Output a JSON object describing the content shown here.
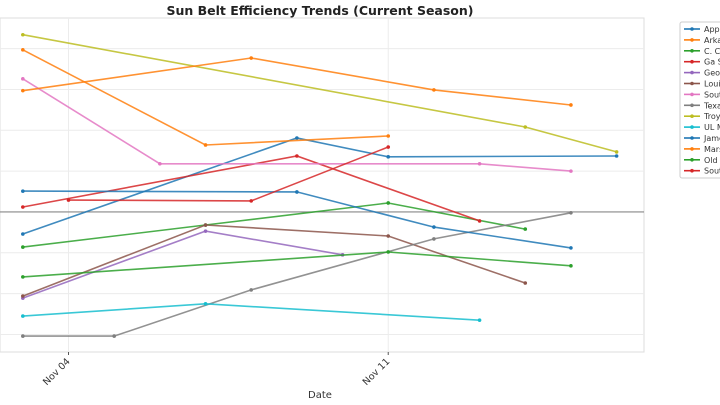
{
  "chart_data": {
    "type": "line",
    "title": "Sun Belt Efficiency Trends (Current Season)",
    "xlabel": "Date",
    "ylabel": "",
    "x_ticks": [
      "Nov 04",
      "Nov 11"
    ],
    "xlim": [
      "Nov 02.5",
      "Nov 16.6"
    ],
    "ylim": [
      -3.43,
      4.75
    ],
    "grid": true,
    "zero_line": true,
    "legend_placement": "outside-right",
    "series": [
      {
        "name": "Appa",
        "color": "#1f77b4",
        "points": [
          [
            "Nov 03",
            -0.54
          ],
          [
            "Nov 09",
            1.81
          ],
          [
            "Nov 11",
            1.35
          ],
          [
            "Nov 16",
            1.37
          ]
        ]
      },
      {
        "name": "Arka",
        "color": "#ff7f0e",
        "points": [
          [
            "Nov 03",
            3.97
          ],
          [
            "Nov 07",
            1.64
          ],
          [
            "Nov 11",
            1.86
          ]
        ]
      },
      {
        "name": "C. C",
        "color": "#2ca02c",
        "points": [
          [
            "Nov 03",
            -0.86
          ],
          [
            "Nov 07",
            -0.32
          ],
          [
            "Nov 11",
            0.22
          ],
          [
            "Nov 14",
            -0.42
          ]
        ]
      },
      {
        "name": "Ga S",
        "color": "#d62728",
        "points": [
          [
            "Nov 03",
            0.12
          ],
          [
            "Nov 09",
            1.37
          ],
          [
            "Nov 13",
            -0.22
          ]
        ]
      },
      {
        "name": "Geo",
        "color": "#9467bd",
        "points": [
          [
            "Nov 03",
            -2.11
          ],
          [
            "Nov 07",
            -0.47
          ],
          [
            "Nov 10",
            -1.05
          ]
        ]
      },
      {
        "name": "Loui",
        "color": "#8c564b",
        "points": [
          [
            "Nov 03",
            -2.06
          ],
          [
            "Nov 07",
            -0.32
          ],
          [
            "Nov 11",
            -0.59
          ],
          [
            "Nov 14",
            -1.74
          ]
        ]
      },
      {
        "name": "Sout",
        "color": "#e377c2",
        "points": [
          [
            "Nov 03",
            3.26
          ],
          [
            "Nov 06",
            1.18
          ],
          [
            "Nov 13",
            1.18
          ],
          [
            "Nov 15",
            1.0
          ]
        ]
      },
      {
        "name": "Texa",
        "color": "#7f7f7f",
        "points": [
          [
            "Nov 03",
            -3.04
          ],
          [
            "Nov 05",
            -3.04
          ],
          [
            "Nov 08",
            -1.91
          ],
          [
            "Nov 12",
            -0.66
          ],
          [
            "Nov 15",
            -0.02
          ]
        ]
      },
      {
        "name": "Troy",
        "color": "#bcbd22",
        "points": [
          [
            "Nov 03",
            4.34
          ],
          [
            "Nov 14",
            2.08
          ],
          [
            "Nov 16",
            1.47
          ]
        ]
      },
      {
        "name": "UL M",
        "color": "#17becf",
        "points": [
          [
            "Nov 03",
            -2.55
          ],
          [
            "Nov 07",
            -2.25
          ],
          [
            "Nov 13",
            -2.65
          ]
        ]
      },
      {
        "name": "Jame",
        "color": "#1f77b4",
        "points": [
          [
            "Nov 03",
            0.51
          ],
          [
            "Nov 09",
            0.49
          ],
          [
            "Nov 12",
            -0.37
          ],
          [
            "Nov 15",
            -0.88
          ]
        ]
      },
      {
        "name": "Mars",
        "color": "#ff7f0e",
        "points": [
          [
            "Nov 03",
            2.97
          ],
          [
            "Nov 08",
            3.77
          ],
          [
            "Nov 12",
            2.99
          ],
          [
            "Nov 15",
            2.62
          ]
        ]
      },
      {
        "name": "Old",
        "color": "#2ca02c",
        "points": [
          [
            "Nov 03",
            -1.59
          ],
          [
            "Nov 11",
            -0.98
          ],
          [
            "Nov 15",
            -1.32
          ]
        ]
      },
      {
        "name": "Sout",
        "color": "#d62728",
        "points": [
          [
            "Nov 04",
            0.29
          ],
          [
            "Nov 08",
            0.27
          ],
          [
            "Nov 11",
            1.59
          ]
        ]
      }
    ]
  }
}
